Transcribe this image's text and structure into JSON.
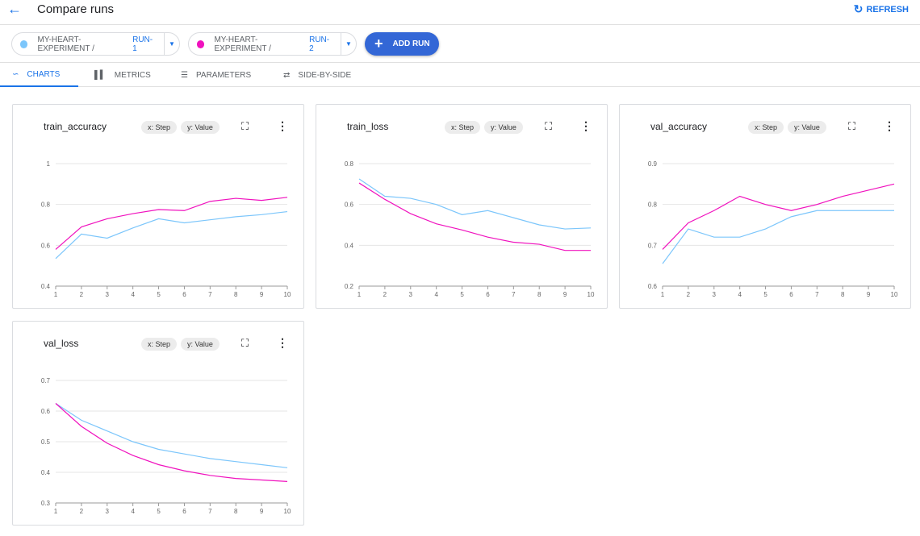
{
  "header": {
    "title": "Compare runs",
    "back_icon": "arrow-left-icon",
    "refresh_label": "REFRESH"
  },
  "runs": [
    {
      "experiment": "MY-HEART-EXPERIMENT / ",
      "run": "RUN-1",
      "color": "#7cc6fb"
    },
    {
      "experiment": "MY-HEART-EXPERIMENT / ",
      "run": "RUN-2",
      "color": "#f012be"
    }
  ],
  "add_run_label": "ADD RUN",
  "tabs": [
    {
      "label": "CHARTS",
      "active": true
    },
    {
      "label": "METRICS"
    },
    {
      "label": "PARAMETERS"
    },
    {
      "label": "SIDE-BY-SIDE"
    }
  ],
  "chips": {
    "x": "x: Step",
    "y": "y: Value"
  },
  "chart_data": [
    {
      "type": "line",
      "title": "train_accuracy",
      "x": [
        1,
        2,
        3,
        4,
        5,
        6,
        7,
        8,
        9,
        10
      ],
      "ylim": [
        0.4,
        1
      ],
      "yticks": [
        "0.4",
        "0.6",
        "0.8",
        "1"
      ],
      "series": [
        {
          "run": "RUN-1",
          "color": "#7cc6fb",
          "values": [
            0.535,
            0.655,
            0.635,
            0.685,
            0.73,
            0.71,
            0.725,
            0.74,
            0.75,
            0.765
          ]
        },
        {
          "run": "RUN-2",
          "color": "#f012be",
          "values": [
            0.58,
            0.69,
            0.73,
            0.755,
            0.775,
            0.77,
            0.815,
            0.83,
            0.82,
            0.835
          ]
        }
      ]
    },
    {
      "type": "line",
      "title": "train_loss",
      "x": [
        1,
        2,
        3,
        4,
        5,
        6,
        7,
        8,
        9,
        10
      ],
      "ylim": [
        0.2,
        0.8
      ],
      "yticks": [
        "0.2",
        "0.4",
        "0.6",
        "0.8"
      ],
      "series": [
        {
          "run": "RUN-1",
          "color": "#7cc6fb",
          "values": [
            0.725,
            0.64,
            0.63,
            0.6,
            0.55,
            0.57,
            0.535,
            0.5,
            0.48,
            0.485
          ]
        },
        {
          "run": "RUN-2",
          "color": "#f012be",
          "values": [
            0.705,
            0.625,
            0.555,
            0.505,
            0.475,
            0.44,
            0.415,
            0.405,
            0.375,
            0.375
          ]
        }
      ]
    },
    {
      "type": "line",
      "title": "val_accuracy",
      "x": [
        1,
        2,
        3,
        4,
        5,
        6,
        7,
        8,
        9,
        10
      ],
      "ylim": [
        0.6,
        0.9
      ],
      "yticks": [
        "0.6",
        "0.7",
        "0.8",
        "0.9"
      ],
      "series": [
        {
          "run": "RUN-1",
          "color": "#7cc6fb",
          "values": [
            0.655,
            0.74,
            0.72,
            0.72,
            0.74,
            0.77,
            0.785,
            0.785,
            0.785,
            0.785
          ]
        },
        {
          "run": "RUN-2",
          "color": "#f012be",
          "values": [
            0.69,
            0.755,
            0.785,
            0.82,
            0.8,
            0.785,
            0.8,
            0.82,
            0.835,
            0.85
          ]
        }
      ]
    },
    {
      "type": "line",
      "title": "val_loss",
      "x": [
        1,
        2,
        3,
        4,
        5,
        6,
        7,
        8,
        9,
        10
      ],
      "ylim": [
        0.3,
        0.7
      ],
      "yticks": [
        "0.3",
        "0.4",
        "0.5",
        "0.6",
        "0.7"
      ],
      "series": [
        {
          "run": "RUN-1",
          "color": "#7cc6fb",
          "values": [
            0.625,
            0.57,
            0.535,
            0.5,
            0.475,
            0.46,
            0.445,
            0.435,
            0.425,
            0.415
          ]
        },
        {
          "run": "RUN-2",
          "color": "#f012be",
          "values": [
            0.625,
            0.55,
            0.495,
            0.455,
            0.425,
            0.405,
            0.39,
            0.38,
            0.375,
            0.37
          ]
        }
      ]
    }
  ]
}
